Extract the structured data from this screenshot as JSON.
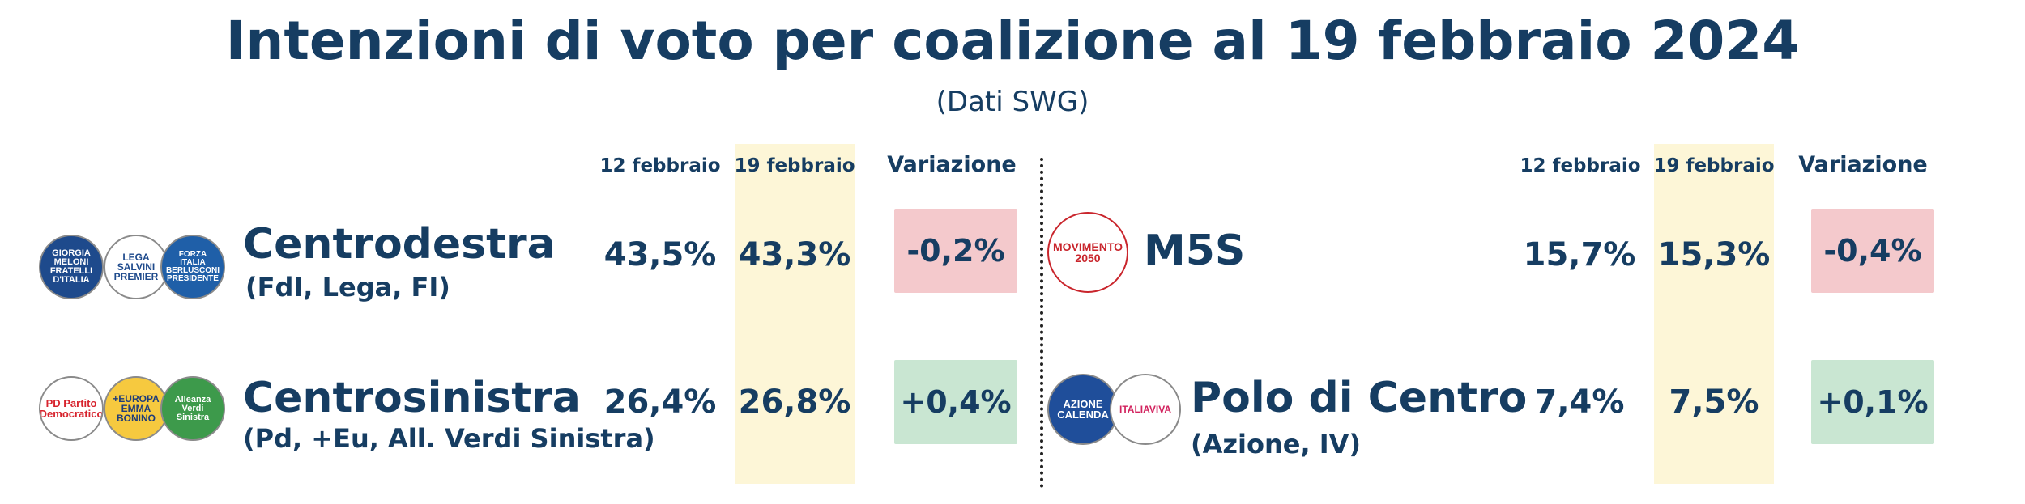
{
  "chart_data": {
    "type": "table",
    "title": "Intenzioni di voto per coalizione al 19 febbraio 2024",
    "subtitle": "(Dati SWG)",
    "columns": [
      "12 febbraio",
      "19 febbraio",
      "Variazione"
    ],
    "rows": [
      {
        "name": "Centrodestra",
        "parties": "(FdI, Lega, FI)",
        "values": [
          43.5,
          43.3
        ],
        "labels": [
          "43,5%",
          "43,3%"
        ],
        "change": -0.2,
        "change_label": "-0,2%"
      },
      {
        "name": "Centrosinistra",
        "parties": "(Pd, +Eu, All. Verdi Sinistra)",
        "values": [
          26.4,
          26.8
        ],
        "labels": [
          "26,4%",
          "26,8%"
        ],
        "change": 0.4,
        "change_label": "+0,4%"
      },
      {
        "name": "M5S",
        "parties": "",
        "values": [
          15.7,
          15.3
        ],
        "labels": [
          "15,7%",
          "15,3%"
        ],
        "change": -0.4,
        "change_label": "-0,4%"
      },
      {
        "name": "Polo di Centro",
        "parties": "(Azione, IV)",
        "values": [
          7.4,
          7.5
        ],
        "labels": [
          "7,4%",
          "7,5%"
        ],
        "change": 0.1,
        "change_label": "+0,1%"
      }
    ],
    "colors": {
      "negative": "#f4c9cc",
      "positive": "#c9e6d2",
      "highlight": "#fdf6d7",
      "text": "#163d62"
    }
  },
  "logos": {
    "fdi": "GIORGIA MELONI FRATELLI D'ITALIA",
    "lega": "LEGA SALVINI PREMIER",
    "fi": "FORZA ITALIA BERLUSCONI PRESIDENTE",
    "pd": "PD Partito Democratico",
    "eu": "+EUROPA EMMA BONINO",
    "avs": "Alleanza Verdi Sinistra",
    "m5s": "MOVIMENTO 2050",
    "azione": "AZIONE CALENDA",
    "iv": "ITALIAVIVA"
  }
}
